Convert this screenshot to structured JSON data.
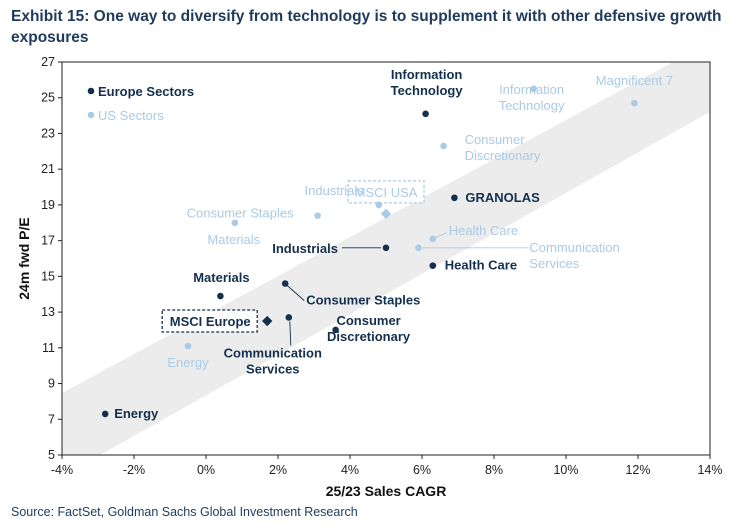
{
  "title": "Exhibit 15: One way to diversify from technology is to supplement it with other defensive growth exposures",
  "source": "Source: FactSet, Goldman Sachs Global Investment Research",
  "chart_data": {
    "type": "scatter",
    "xlabel": "25/23 Sales CAGR",
    "ylabel": "24m fwd P/E",
    "xlim": [
      -4,
      14
    ],
    "ylim": [
      5,
      27
    ],
    "x_ticks": [
      "-4%",
      "-2%",
      "0%",
      "2%",
      "4%",
      "6%",
      "8%",
      "10%",
      "12%",
      "14%"
    ],
    "y_ticks": [
      "5",
      "7",
      "9",
      "11",
      "13",
      "15",
      "17",
      "19",
      "21",
      "23",
      "25",
      "27"
    ],
    "grid": false,
    "legend_position": "top-left",
    "colors": {
      "europe": "#14304f",
      "us": "#a9cbe7",
      "band": "#ededed"
    },
    "series": [
      {
        "name": "Europe Sectors",
        "points": [
          {
            "label": "Information Technology",
            "x": 6.1,
            "y": 24.1
          },
          {
            "label": "GRANOLAS",
            "x": 6.9,
            "y": 19.4
          },
          {
            "label": "Industrials",
            "x": 5.0,
            "y": 16.6
          },
          {
            "label": "Health Care",
            "x": 6.3,
            "y": 15.6
          },
          {
            "label": "Materials",
            "x": 0.4,
            "y": 13.9
          },
          {
            "label": "Consumer Staples",
            "x": 2.2,
            "y": 14.6
          },
          {
            "label": "Communication Services",
            "x": 2.3,
            "y": 12.7
          },
          {
            "label": "Consumer Discretionary",
            "x": 3.6,
            "y": 12.0
          },
          {
            "label": "Energy",
            "x": -2.8,
            "y": 7.3
          }
        ]
      },
      {
        "name": "US Sectors",
        "points": [
          {
            "label": "Magnificent 7",
            "x": 11.9,
            "y": 24.7
          },
          {
            "label": "Information Technology",
            "x": 9.1,
            "y": 25.5
          },
          {
            "label": "Consumer Discretionary",
            "x": 6.6,
            "y": 22.3
          },
          {
            "label": "Industrials",
            "x": 4.8,
            "y": 19.0
          },
          {
            "label": "Consumer Staples",
            "x": 3.1,
            "y": 18.4
          },
          {
            "label": "Materials",
            "x": 0.8,
            "y": 18.0
          },
          {
            "label": "Health Care",
            "x": 6.3,
            "y": 17.1
          },
          {
            "label": "Communication Services",
            "x": 5.9,
            "y": 16.6
          },
          {
            "label": "Energy",
            "x": -0.5,
            "y": 11.1
          }
        ]
      }
    ],
    "benchmarks": [
      {
        "label": "MSCI USA",
        "x": 5.0,
        "y": 18.5,
        "series": "US Sectors"
      },
      {
        "label": "MSCI Europe",
        "x": 1.7,
        "y": 12.5,
        "series": "Europe Sectors"
      }
    ]
  }
}
